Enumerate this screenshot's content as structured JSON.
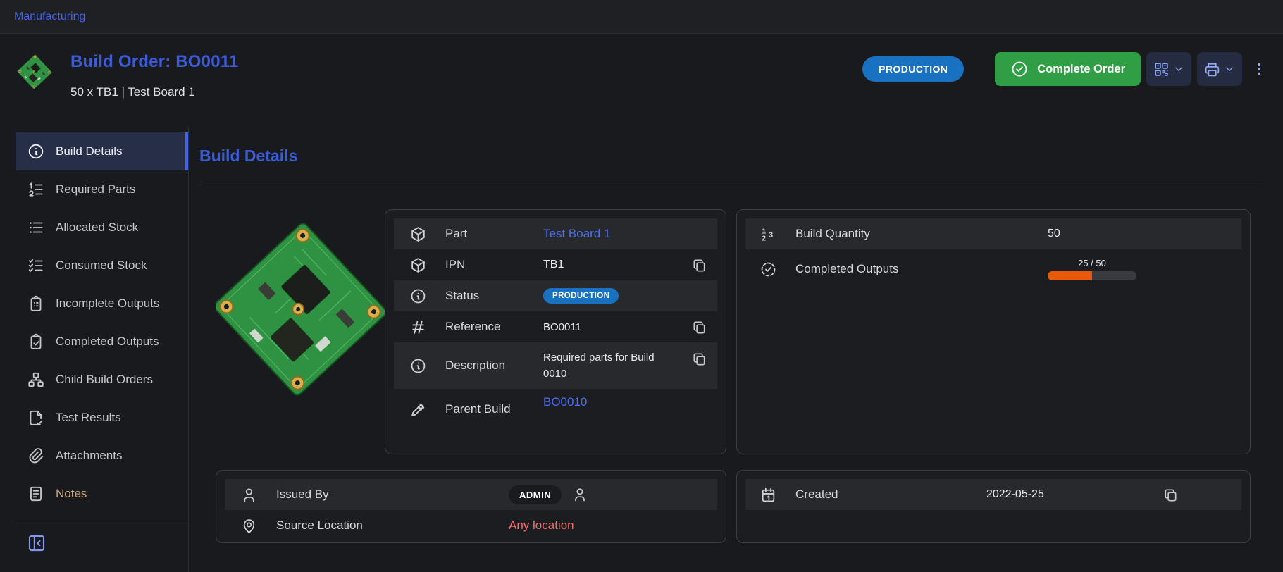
{
  "breadcrumb": {
    "items": [
      "Manufacturing"
    ]
  },
  "header": {
    "title": "Build Order: BO0011",
    "subtitle": "50 x TB1 | Test Board 1",
    "status": "PRODUCTION",
    "actions": {
      "complete": "Complete Order"
    }
  },
  "sidebar": {
    "items": [
      {
        "label": "Build Details",
        "active": true
      },
      {
        "label": "Required Parts"
      },
      {
        "label": "Allocated Stock"
      },
      {
        "label": "Consumed Stock"
      },
      {
        "label": "Incomplete Outputs"
      },
      {
        "label": "Completed Outputs"
      },
      {
        "label": "Child Build Orders"
      },
      {
        "label": "Test Results"
      },
      {
        "label": "Attachments"
      },
      {
        "label": "Notes"
      }
    ]
  },
  "main": {
    "heading": "Build Details",
    "details": {
      "part": {
        "label": "Part",
        "value": "Test Board 1"
      },
      "ipn": {
        "label": "IPN",
        "value": "TB1"
      },
      "status": {
        "label": "Status",
        "value": "PRODUCTION"
      },
      "reference": {
        "label": "Reference",
        "value": "BO0011"
      },
      "description": {
        "label": "Description",
        "value": "Required parts for Build 0010"
      },
      "parent": {
        "label": "Parent Build",
        "value": "BO0010"
      }
    },
    "quantities": {
      "build_quantity": {
        "label": "Build Quantity",
        "value": "50"
      },
      "completed_outputs": {
        "label": "Completed Outputs",
        "progress_text": "25 / 50",
        "percent": 50
      }
    },
    "people": {
      "issued_by": {
        "label": "Issued By",
        "value": "ADMIN"
      },
      "source_location": {
        "label": "Source Location",
        "value": "Any location"
      }
    },
    "dates": {
      "created": {
        "label": "Created",
        "value": "2022-05-25"
      }
    }
  },
  "colors": {
    "accent": "#3b5bdb",
    "link": "#4c6ef5",
    "production_badge": "#1971c2",
    "success_button": "#2f9e44",
    "progress_fill": "#e8590c",
    "danger_text": "#ff6b6b"
  }
}
